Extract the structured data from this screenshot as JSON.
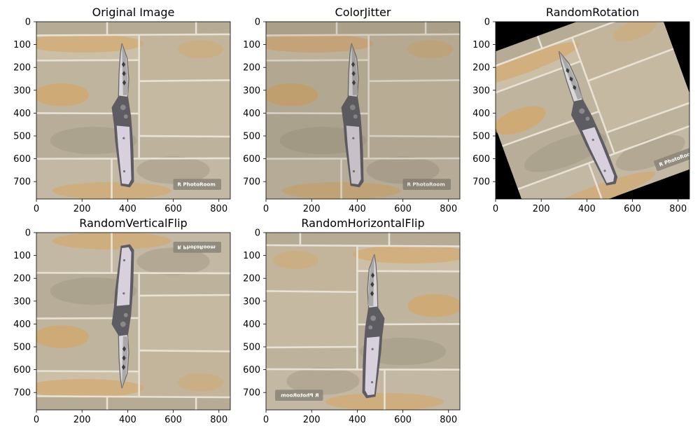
{
  "colors": {
    "stone": "#c7bca6",
    "stone_dark": "#a89d86",
    "mortar": "#e8e2d4",
    "rust": "#d9a35c",
    "blade": "#cfcfcf",
    "handle": "#d8d0dc",
    "handle_dark": "#5c5c62",
    "fill_black": "#000000"
  },
  "chart_data": [
    {
      "type": "image",
      "title": "Original Image",
      "transform": "none",
      "xlim": [
        0,
        850
      ],
      "ylim": [
        776,
        0
      ],
      "xticks": [
        0,
        200,
        400,
        600,
        800
      ],
      "yticks": [
        0,
        100,
        200,
        300,
        400,
        500,
        600,
        700
      ],
      "xtick_labels": [
        "0",
        "200",
        "400",
        "600",
        "800"
      ],
      "ytick_labels": [
        "0",
        "100",
        "200",
        "300",
        "400",
        "500",
        "600",
        "700"
      ],
      "watermark": "PhotoRoom"
    },
    {
      "type": "image",
      "title": "ColorJitter",
      "transform": "color-jitter",
      "xlim": [
        0,
        850
      ],
      "ylim": [
        776,
        0
      ],
      "xticks": [
        0,
        200,
        400,
        600,
        800
      ],
      "yticks": [
        0,
        100,
        200,
        300,
        400,
        500,
        600,
        700
      ],
      "xtick_labels": [
        "0",
        "200",
        "400",
        "600",
        "800"
      ],
      "ytick_labels": [
        "0",
        "100",
        "200",
        "300",
        "400",
        "500",
        "600",
        "700"
      ],
      "watermark": "PhotoRoom"
    },
    {
      "type": "image",
      "title": "RandomRotation",
      "transform": "rotate",
      "rotation_deg": -20,
      "xlim": [
        0,
        850
      ],
      "ylim": [
        776,
        0
      ],
      "xticks": [
        0,
        200,
        400,
        600,
        800
      ],
      "yticks": [
        0,
        100,
        200,
        300,
        400,
        500,
        600,
        700
      ],
      "xtick_labels": [
        "0",
        "200",
        "400",
        "600",
        "800"
      ],
      "ytick_labels": [
        "0",
        "100",
        "200",
        "300",
        "400",
        "500",
        "600",
        "700"
      ],
      "watermark": "PhotoRoom"
    },
    {
      "type": "image",
      "title": "RandomVerticalFlip",
      "transform": "flip-vertical",
      "xlim": [
        0,
        850
      ],
      "ylim": [
        776,
        0
      ],
      "xticks": [
        0,
        200,
        400,
        600,
        800
      ],
      "yticks": [
        0,
        100,
        200,
        300,
        400,
        500,
        600,
        700
      ],
      "xtick_labels": [
        "0",
        "200",
        "400",
        "600",
        "800"
      ],
      "ytick_labels": [
        "0",
        "100",
        "200",
        "300",
        "400",
        "500",
        "600",
        "700"
      ],
      "watermark": "PhotoRoom"
    },
    {
      "type": "image",
      "title": "RandomHorizontalFlip",
      "transform": "flip-horizontal",
      "xlim": [
        0,
        850
      ],
      "ylim": [
        776,
        0
      ],
      "xticks": [
        0,
        200,
        400,
        600,
        800
      ],
      "yticks": [
        0,
        100,
        200,
        300,
        400,
        500,
        600,
        700
      ],
      "xtick_labels": [
        "0",
        "200",
        "400",
        "600",
        "800"
      ],
      "ytick_labels": [
        "0",
        "100",
        "200",
        "300",
        "400",
        "500",
        "600",
        "700"
      ],
      "watermark": "PhotoRoom"
    }
  ]
}
